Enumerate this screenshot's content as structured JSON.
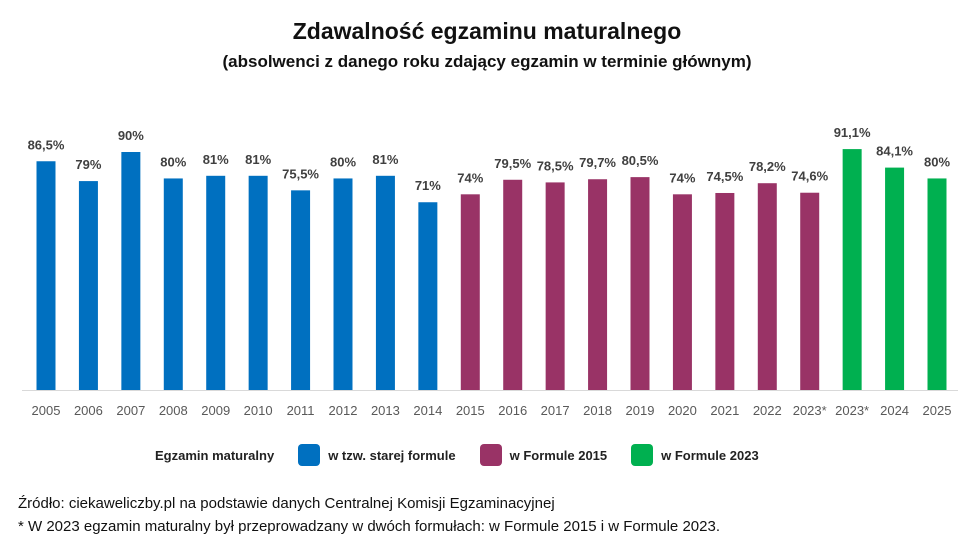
{
  "chart_data": {
    "type": "bar",
    "title": "Zdawalność egzaminu maturalnego",
    "subtitle": "(absolwenci z danego roku zdający egzamin w terminie głównym)",
    "categories": [
      "2005",
      "2006",
      "2007",
      "2008",
      "2009",
      "2010",
      "2011",
      "2012",
      "2013",
      "2014",
      "2015",
      "2016",
      "2017",
      "2018",
      "2019",
      "2020",
      "2021",
      "2022",
      "2023*",
      "2023*",
      "2024",
      "2025"
    ],
    "values": [
      86.5,
      79,
      90,
      80,
      81,
      81,
      75.5,
      80,
      81,
      71,
      74,
      79.5,
      78.5,
      79.7,
      80.5,
      74,
      74.5,
      78.2,
      74.6,
      91.1,
      84.1,
      80
    ],
    "labels": [
      "86,5%",
      "79%",
      "90%",
      "80%",
      "81%",
      "81%",
      "75,5%",
      "80%",
      "81%",
      "71%",
      "74%",
      "79,5%",
      "78,5%",
      "79,7%",
      "80,5%",
      "74%",
      "74,5%",
      "78,2%",
      "74,6%",
      "91,1%",
      "84,1%",
      "80%"
    ],
    "groups": [
      0,
      0,
      0,
      0,
      0,
      0,
      0,
      0,
      0,
      0,
      1,
      1,
      1,
      1,
      1,
      1,
      1,
      1,
      1,
      2,
      2,
      2
    ],
    "ylim": [
      0,
      100
    ],
    "grid": false,
    "legend_placement": "bottom",
    "legend": {
      "title": "Egzamin maturalny",
      "entries": [
        {
          "name": "w tzw. starej formule",
          "color": "#0070C0"
        },
        {
          "name": "w Formule 2015",
          "color": "#993366"
        },
        {
          "name": "w Formule 2023",
          "color": "#00B050"
        }
      ]
    }
  },
  "footer": {
    "source": "Źródło: ciekaweliczby.pl na podstawie danych Centralnej Komisji Egzaminacyjnej",
    "note": "* W 2023 egzamin maturalny był przeprowadzany w dwóch formułach: w Formule 2015 i w Formule 2023."
  }
}
